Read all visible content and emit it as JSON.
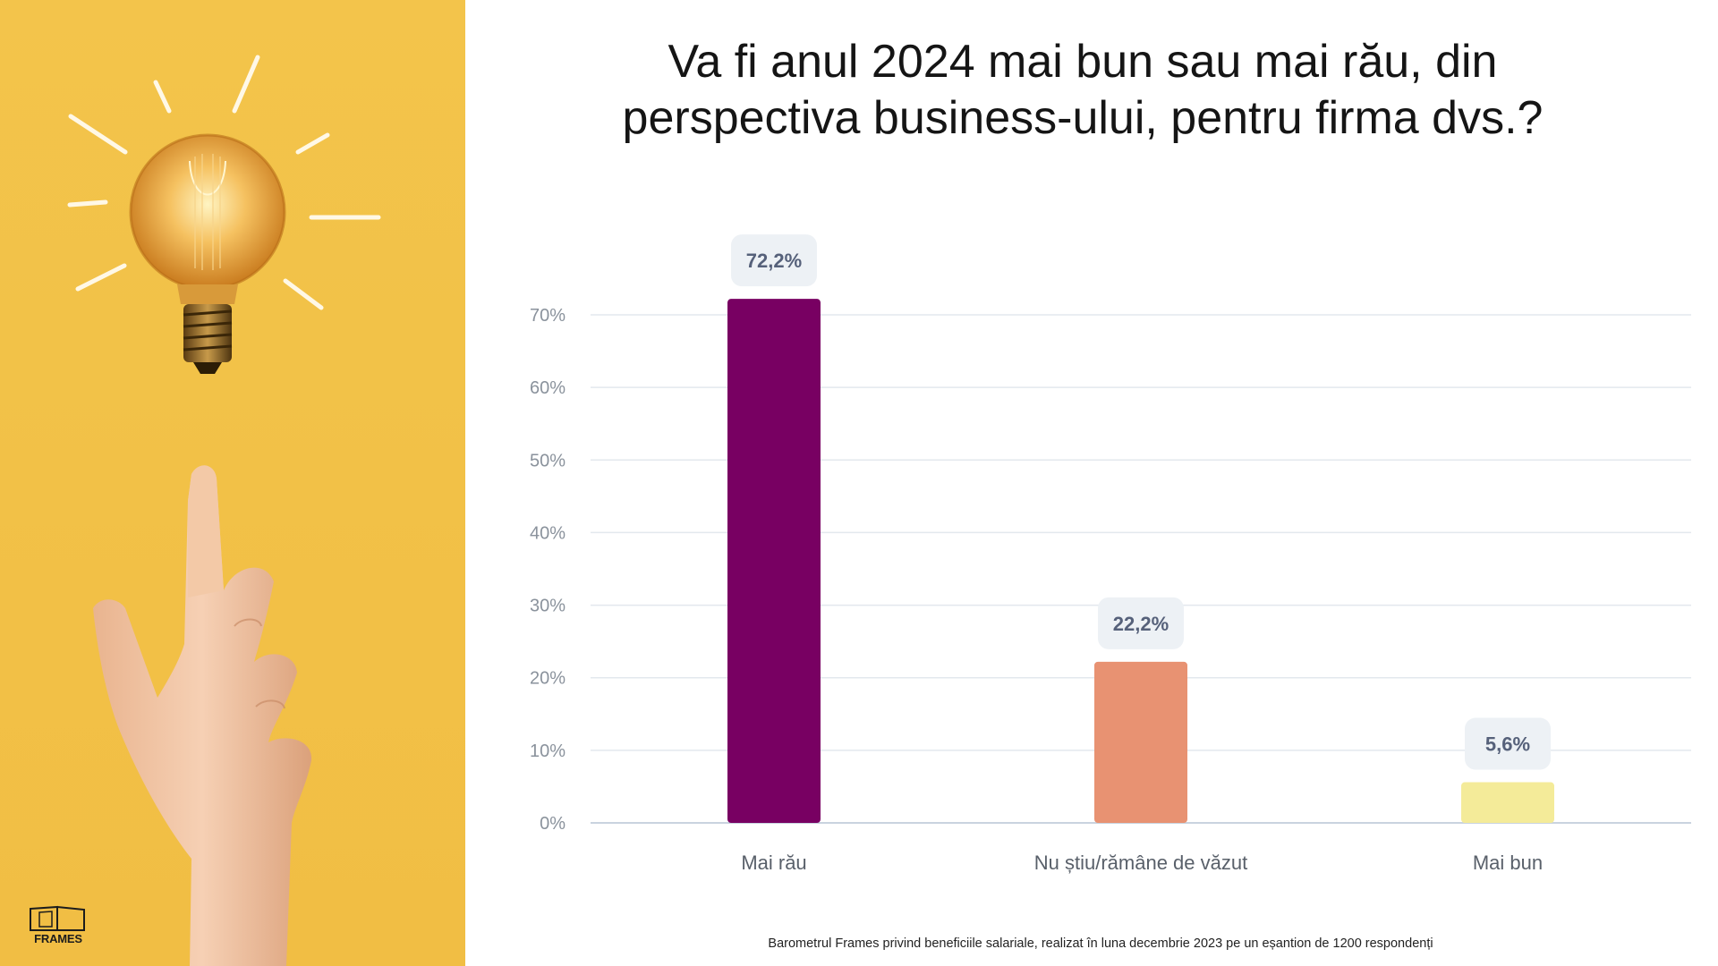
{
  "title_line_1": "Va fi anul 2024 mai bun sau mai rău, din",
  "title_line_2": "perspectiva business-ului, pentru firma dvs.?",
  "logo_text": "FRAMES",
  "source_note": "Barometrul Frames privind beneficiile salariale, realizat în luna decembrie 2023 pe un eșantion de 1200 respondenți",
  "panel_image": {
    "icons": [
      "light-bulb-icon",
      "pointing-hand-icon",
      "frames-logo-icon"
    ],
    "background_color": "#f2c147"
  },
  "chart_data": {
    "type": "bar",
    "categories": [
      "Mai rău",
      "Nu știu/rămâne de văzut",
      "Mai bun"
    ],
    "values": [
      72.2,
      22.2,
      5.6
    ],
    "value_labels": [
      "72,2%",
      "22,2%",
      "5,6%"
    ],
    "colors": [
      "#780062",
      "#e89272",
      "#f4eb99"
    ],
    "y_ticks": [
      0,
      10,
      20,
      30,
      40,
      50,
      60,
      70
    ],
    "y_tick_labels": [
      "0%",
      "10%",
      "20%",
      "30%",
      "40%",
      "50%",
      "60%",
      "70%"
    ],
    "ylim": [
      0,
      70
    ],
    "grid": true,
    "legend": "none",
    "xlabel": "",
    "ylabel": ""
  }
}
